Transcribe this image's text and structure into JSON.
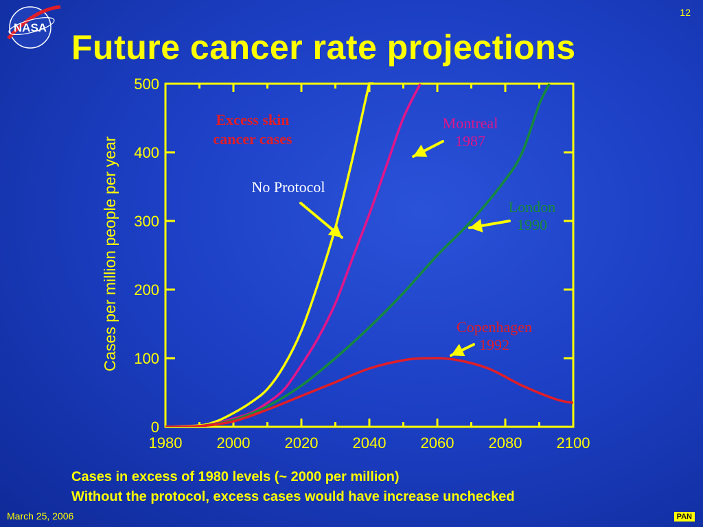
{
  "slide": {
    "number": "12",
    "title": "Future cancer rate projections",
    "logo_text": "NASA",
    "notes": [
      "Cases in excess of 1980 levels (~ 2000 per million)",
      "Without the protocol, excess cases would have increase unchecked"
    ],
    "date": "March 25, 2006",
    "tag": "PAN"
  },
  "colors": {
    "background": "#1c3fc4",
    "axis": "#ffff00",
    "no_protocol": "#ffff00",
    "montreal": "#e0168a",
    "london": "#168a3c",
    "copenhagen": "#e01e28",
    "annotation_title": "#e01e28"
  },
  "chart_data": {
    "type": "line",
    "title": "",
    "xlabel": "",
    "ylabel": "Cases per million people per year",
    "xlim": [
      1980,
      2100
    ],
    "ylim": [
      0,
      500
    ],
    "x_ticks": [
      1980,
      2000,
      2020,
      2040,
      2060,
      2080,
      2100
    ],
    "y_ticks": [
      0,
      100,
      200,
      300,
      400,
      500
    ],
    "grid": false,
    "annotation_title": [
      "Excess skin",
      "cancer cases"
    ],
    "series": [
      {
        "name": "No Protocol",
        "label_lines": [
          "No Protocol"
        ],
        "color_key": "no_protocol",
        "points": [
          [
            1980,
            0
          ],
          [
            1990,
            2
          ],
          [
            1995,
            8
          ],
          [
            2000,
            20
          ],
          [
            2005,
            35
          ],
          [
            2010,
            55
          ],
          [
            2015,
            90
          ],
          [
            2020,
            140
          ],
          [
            2025,
            210
          ],
          [
            2030,
            290
          ],
          [
            2035,
            390
          ],
          [
            2040,
            500
          ],
          [
            2041,
            500
          ]
        ]
      },
      {
        "name": "Montreal 1987",
        "label_lines": [
          "Montreal",
          "1987"
        ],
        "color_key": "montreal",
        "points": [
          [
            1980,
            0
          ],
          [
            1990,
            1
          ],
          [
            1995,
            5
          ],
          [
            2000,
            12
          ],
          [
            2005,
            20
          ],
          [
            2010,
            35
          ],
          [
            2015,
            55
          ],
          [
            2020,
            90
          ],
          [
            2025,
            130
          ],
          [
            2030,
            180
          ],
          [
            2035,
            245
          ],
          [
            2040,
            310
          ],
          [
            2045,
            380
          ],
          [
            2050,
            450
          ],
          [
            2055,
            500
          ]
        ]
      },
      {
        "name": "London 1990",
        "label_lines": [
          "London",
          "1990"
        ],
        "color_key": "london",
        "points": [
          [
            1980,
            0
          ],
          [
            1990,
            1
          ],
          [
            2000,
            10
          ],
          [
            2010,
            30
          ],
          [
            2020,
            60
          ],
          [
            2030,
            100
          ],
          [
            2040,
            145
          ],
          [
            2050,
            195
          ],
          [
            2060,
            250
          ],
          [
            2070,
            300
          ],
          [
            2080,
            360
          ],
          [
            2085,
            400
          ],
          [
            2090,
            470
          ],
          [
            2093,
            500
          ]
        ]
      },
      {
        "name": "Copenhagen 1992",
        "label_lines": [
          "Copenhagen",
          "1992"
        ],
        "color_key": "copenhagen",
        "points": [
          [
            1980,
            0
          ],
          [
            1990,
            1
          ],
          [
            2000,
            8
          ],
          [
            2010,
            25
          ],
          [
            2020,
            45
          ],
          [
            2030,
            65
          ],
          [
            2040,
            85
          ],
          [
            2050,
            97
          ],
          [
            2057,
            100
          ],
          [
            2065,
            98
          ],
          [
            2075,
            85
          ],
          [
            2085,
            60
          ],
          [
            2095,
            40
          ],
          [
            2100,
            35
          ]
        ]
      }
    ]
  }
}
